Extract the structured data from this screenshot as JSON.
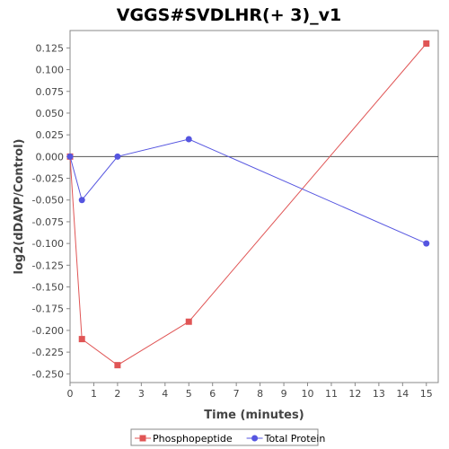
{
  "chart_data": {
    "type": "line",
    "title": "VGGS#SVDLHR(+ 3)_v1",
    "xlabel": "Time (minutes)",
    "ylabel": "log2(dDAVP/Control)",
    "xlim": [
      0,
      15.5
    ],
    "ylim": [
      -0.26,
      0.145
    ],
    "xticks": [
      0,
      1,
      2,
      3,
      4,
      5,
      6,
      7,
      8,
      9,
      10,
      11,
      12,
      13,
      14,
      15
    ],
    "xtick_labels": [
      "0",
      "1",
      "2",
      "3",
      "4",
      "5",
      "6",
      "7",
      "8",
      "9",
      "10",
      "11",
      "12",
      "13",
      "14",
      "15"
    ],
    "yticks": [
      0.125,
      0.1,
      0.075,
      0.05,
      0.025,
      0.0,
      -0.025,
      -0.05,
      -0.075,
      -0.1,
      -0.125,
      -0.15,
      -0.175,
      -0.2,
      -0.225,
      -0.25
    ],
    "ytick_labels": [
      "0.125",
      "0.100",
      "0.075",
      "0.050",
      "0.025",
      "0.000",
      "-0.025",
      "-0.050",
      "-0.075",
      "-0.100",
      "-0.125",
      "-0.150",
      "-0.175",
      "-0.200",
      "-0.225",
      "-0.250"
    ],
    "grid": false,
    "zero_line": true,
    "legend_position": "bottom",
    "series": [
      {
        "name": "Phosphopeptide",
        "color": "#e05555",
        "marker": "square",
        "x": [
          0,
          0.5,
          2,
          5,
          15
        ],
        "y": [
          0.0,
          -0.21,
          -0.24,
          -0.19,
          0.13
        ]
      },
      {
        "name": "Total Protein",
        "color": "#5555e0",
        "marker": "circle",
        "x": [
          0,
          0.5,
          2,
          5,
          15
        ],
        "y": [
          0.0,
          -0.05,
          0.0,
          0.02,
          -0.1
        ]
      }
    ]
  }
}
